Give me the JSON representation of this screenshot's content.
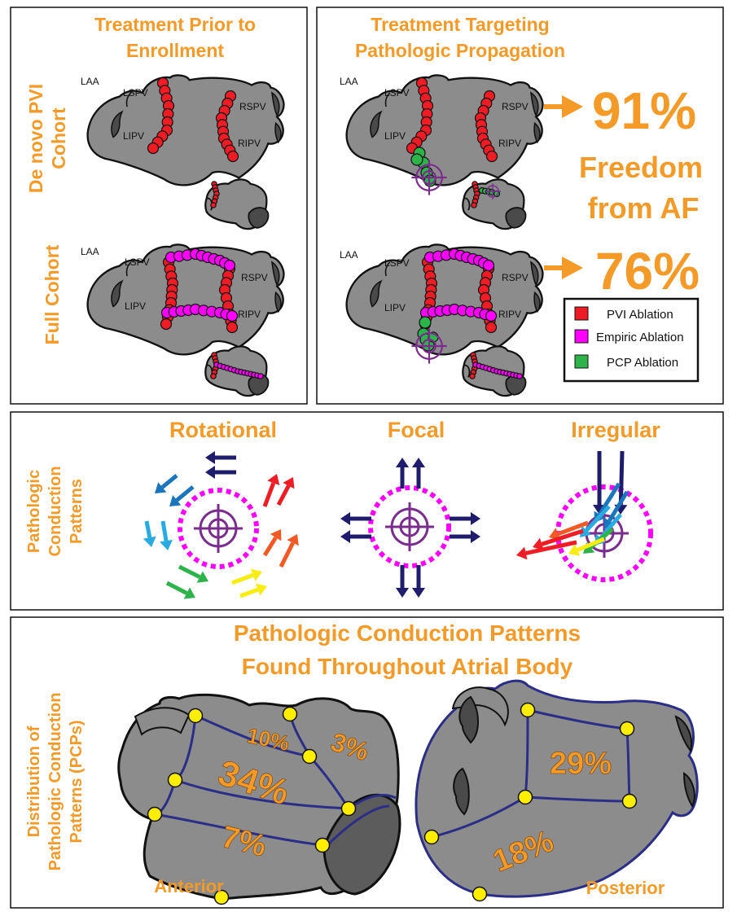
{
  "colors": {
    "accent_orange": "#f39a28",
    "atrium_gray": "#8c8c8c",
    "pvi_red": "#ee1c24",
    "empiric_magenta": "#ff00ff",
    "pcp_green": "#2db34a",
    "target_purple": "#7b2d8e",
    "border_navy": "#2b2d86",
    "marker_yellow": "#ffee00"
  },
  "panel_a": {
    "col1_title_line1": "Treatment Prior to",
    "col1_title_line2": "Enrollment",
    "col2_title_line1": "Treatment Targeting",
    "col2_title_line2": "Pathologic Propagation",
    "row1_label_line1": "De novo PVI",
    "row1_label_line2": "Cohort",
    "row2_label": "Full Cohort",
    "vein_labels": {
      "laa": "LAA",
      "lspv": "LSPV",
      "lipv": "LIPV",
      "rspv": "RSPV",
      "ripv": "RIPV"
    },
    "result_denovo": "91%",
    "result_text_line1": "Freedom",
    "result_text_line2": "from AF",
    "result_full": "76%",
    "legend": [
      {
        "label": "PVI Ablation",
        "color": "#ee1c24",
        "icon": "red-square"
      },
      {
        "label": "Empiric Ablation",
        "color": "#ff00ff",
        "icon": "magenta-square"
      },
      {
        "label": "PCP Ablation",
        "color": "#2db34a",
        "icon": "green-square"
      }
    ]
  },
  "panel_b": {
    "label_line1": "Pathologic",
    "label_line2": "Conduction",
    "label_line3": "Patterns",
    "patterns": [
      "Rotational",
      "Focal",
      "Irregular"
    ]
  },
  "panel_c": {
    "title_line1": "Pathologic Conduction Patterns",
    "title_line2": "Found Throughout Atrial Body",
    "label_line1": "Distribution of",
    "label_line2": "Pathologic Conduction",
    "label_line3": "Patterns (PCPs)",
    "anterior_label": "Anterior",
    "posterior_label": "Posterior",
    "anterior_regions": {
      "roof": "10%",
      "lateral": "3%",
      "center": "34%",
      "inferior": "7%"
    },
    "posterior_regions": {
      "upper": "29%",
      "lower": "18%"
    }
  }
}
